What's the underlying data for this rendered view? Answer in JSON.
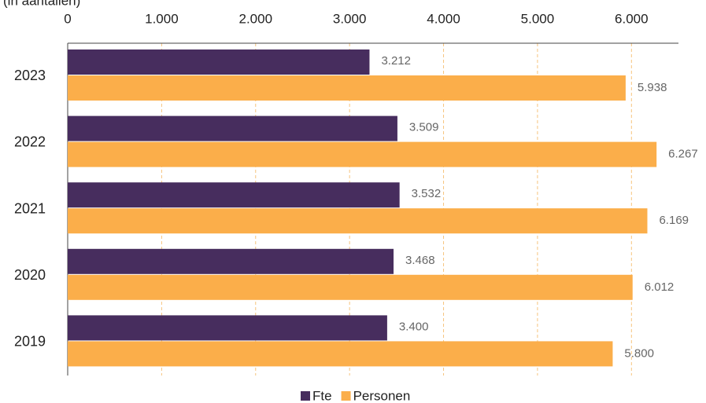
{
  "chart_data": {
    "type": "bar",
    "orientation": "horizontal",
    "subtitle": "(in aantallen)",
    "categories": [
      "2023",
      "2022",
      "2021",
      "2020",
      "2019"
    ],
    "series": [
      {
        "name": "Fte",
        "color": "#472d5e",
        "values": [
          3212,
          3509,
          3532,
          3468,
          3400
        ],
        "value_labels": [
          "3.212",
          "3.509",
          "3.532",
          "3.468",
          "3.400"
        ]
      },
      {
        "name": "Personen",
        "color": "#fbae4a",
        "values": [
          5938,
          6267,
          6169,
          6012,
          5800
        ],
        "value_labels": [
          "5.938",
          "6.267",
          "6.169",
          "6.012",
          "5.800"
        ]
      }
    ],
    "xlim": [
      0,
      6500
    ],
    "xticks": [
      0,
      {
        "value": 1000,
        "label": "1.000"
      },
      {
        "value": 2000,
        "label": "2.000"
      },
      {
        "value": 3000,
        "label": "3.000"
      },
      {
        "value": 4000,
        "label": "4.000"
      },
      {
        "value": 5000,
        "label": "5.000"
      },
      {
        "value": 6000,
        "label": "6.000"
      }
    ],
    "grid": true,
    "legend": "bottom"
  }
}
